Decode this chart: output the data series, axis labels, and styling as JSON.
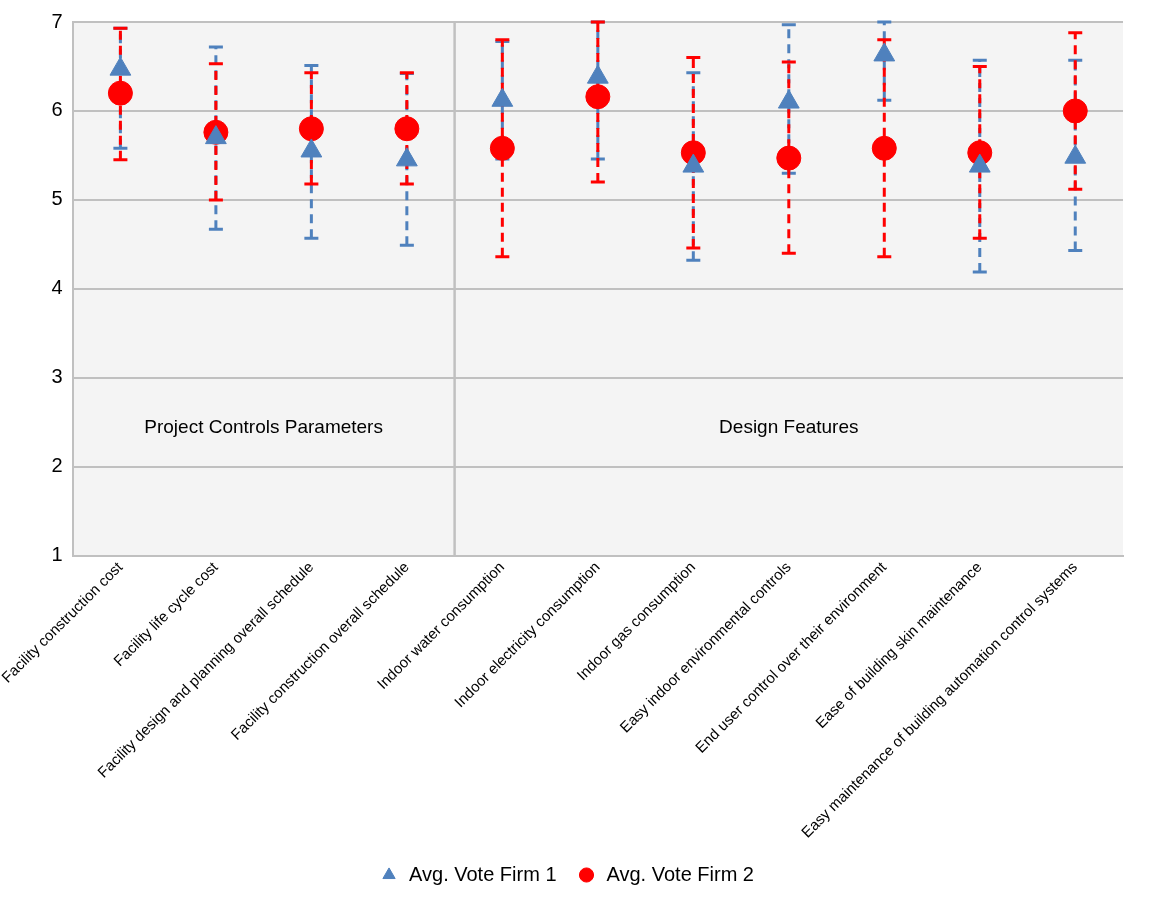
{
  "chart_data": {
    "type": "scatter",
    "categories": [
      "Facility construction cost",
      "Facility life cycle cost",
      "Facility design and planning overall schedule",
      "Facility construction overall schedule",
      "Indoor water consumption",
      "Indoor electricity consumption",
      "Indoor gas consumption",
      "Easy indoor environmental controls",
      "End user control over their environment",
      "Ease of building skin maintenance",
      "Easy maintenance of building automation control systems"
    ],
    "series": [
      {
        "name": "Avg. Vote Firm 1",
        "color": "#4f81bd",
        "marker": "triangle",
        "values": [
          6.47,
          5.7,
          5.55,
          5.45,
          6.12,
          6.38,
          5.38,
          6.1,
          6.63,
          5.38,
          5.48
        ],
        "errors": [
          [
            5.58,
            6.93
          ],
          [
            4.67,
            6.72
          ],
          [
            4.57,
            6.51
          ],
          [
            4.49,
            6.42
          ],
          [
            5.46,
            6.78
          ],
          [
            5.46,
            7
          ],
          [
            4.32,
            6.43
          ],
          [
            5.3,
            6.97
          ],
          [
            6.12,
            7
          ],
          [
            4.19,
            6.57
          ],
          [
            4.43,
            6.57
          ]
        ]
      },
      {
        "name": "Avg. Vote Firm 2",
        "color": "#ff0000",
        "marker": "circle",
        "values": [
          6.2,
          5.76,
          5.8,
          5.8,
          5.58,
          6.16,
          5.53,
          5.47,
          5.58,
          5.53,
          6.0
        ],
        "errors": [
          [
            5.45,
            6.93
          ],
          [
            5.0,
            6.53
          ],
          [
            5.18,
            6.43
          ],
          [
            5.18,
            6.43
          ],
          [
            4.36,
            6.8
          ],
          [
            5.2,
            7
          ],
          [
            4.46,
            6.6
          ],
          [
            4.4,
            6.55
          ],
          [
            4.36,
            6.8
          ],
          [
            4.57,
            6.5
          ],
          [
            5.12,
            6.88
          ]
        ]
      }
    ],
    "bands": [
      {
        "axis": "x",
        "from": "Facility construction cost",
        "to": "Facility construction overall schedule",
        "label": "Project Controls Parameters",
        "color": "#f4f4f4"
      },
      {
        "axis": "x",
        "from": "Indoor water consumption",
        "to": "Easy maintenance of building automation control systems",
        "label": "Design Features",
        "color": "#f4f4f4"
      }
    ],
    "ylim": [
      1,
      7
    ],
    "yticks": [
      1,
      2,
      3,
      4,
      5,
      6,
      7
    ],
    "grid": "y",
    "legend": "bottom",
    "line_style": "dashed"
  }
}
